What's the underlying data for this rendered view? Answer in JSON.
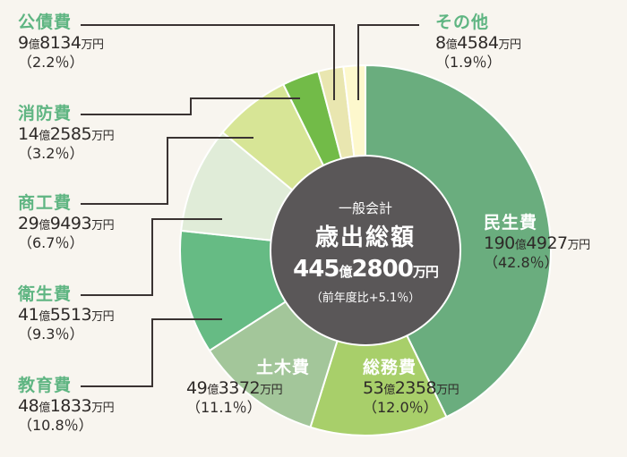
{
  "chart_data": {
    "type": "pie",
    "variant": "donut",
    "title": "一般会計 歳出総額",
    "total": {
      "oku": "445",
      "man": "2800",
      "unit_oku": "億",
      "unit_man": "万円"
    },
    "change_note": "（前年度比+5.1％）",
    "categories": [
      "民生費",
      "総務費",
      "土木費",
      "教育費",
      "衛生費",
      "商工費",
      "消防費",
      "公債費",
      "その他"
    ],
    "values": [
      42.8,
      12.0,
      11.1,
      10.8,
      9.3,
      6.7,
      3.2,
      2.2,
      1.9
    ],
    "amounts_man_yen": [
      1904927,
      532358,
      493372,
      481833,
      415513,
      299493,
      142585,
      98134,
      84584
    ],
    "colors": [
      "#6aad7e",
      "#a8cf6a",
      "#a3c69a",
      "#66bb84",
      "#e0ecd8",
      "#d7e596",
      "#72bb48",
      "#e9e6b0",
      "#fdf8cd"
    ],
    "start_angle": "12 o'clock, clockwise"
  },
  "center": {
    "sub": "一般会計",
    "title": "歳出総額",
    "oku": "445",
    "oku_unit": "億",
    "man": "2800",
    "man_unit": "万円",
    "change": "（前年度比+5.1％）"
  },
  "labels": {
    "minsei": {
      "name": "民生費",
      "oku": "190",
      "man": "4927",
      "pct": "（42.8％）"
    },
    "somu": {
      "name": "総務費",
      "oku": "53",
      "man": "2358",
      "pct": "（12.0％）"
    },
    "doboku": {
      "name": "土木費",
      "oku": "49",
      "man": "3372",
      "pct": "（11.1％）"
    },
    "kyoiku": {
      "name": "教育費",
      "oku": "48",
      "man": "1833",
      "pct": "（10.8％）"
    },
    "eisei": {
      "name": "衛生費",
      "oku": "41",
      "man": "5513",
      "pct": "（9.3％）"
    },
    "shoko": {
      "name": "商工費",
      "oku": "29",
      "man": "9493",
      "pct": "（6.7％）"
    },
    "shobo": {
      "name": "消防費",
      "oku": "14",
      "man": "2585",
      "pct": "（3.2％）"
    },
    "kosai": {
      "name": "公債費",
      "oku": "9",
      "man": "8134",
      "pct": "（2.2％）"
    },
    "sonota": {
      "name": "その他",
      "oku": "8",
      "man": "4584",
      "pct": "（1.9％）"
    }
  },
  "units": {
    "oku": "億",
    "man": "万円"
  }
}
